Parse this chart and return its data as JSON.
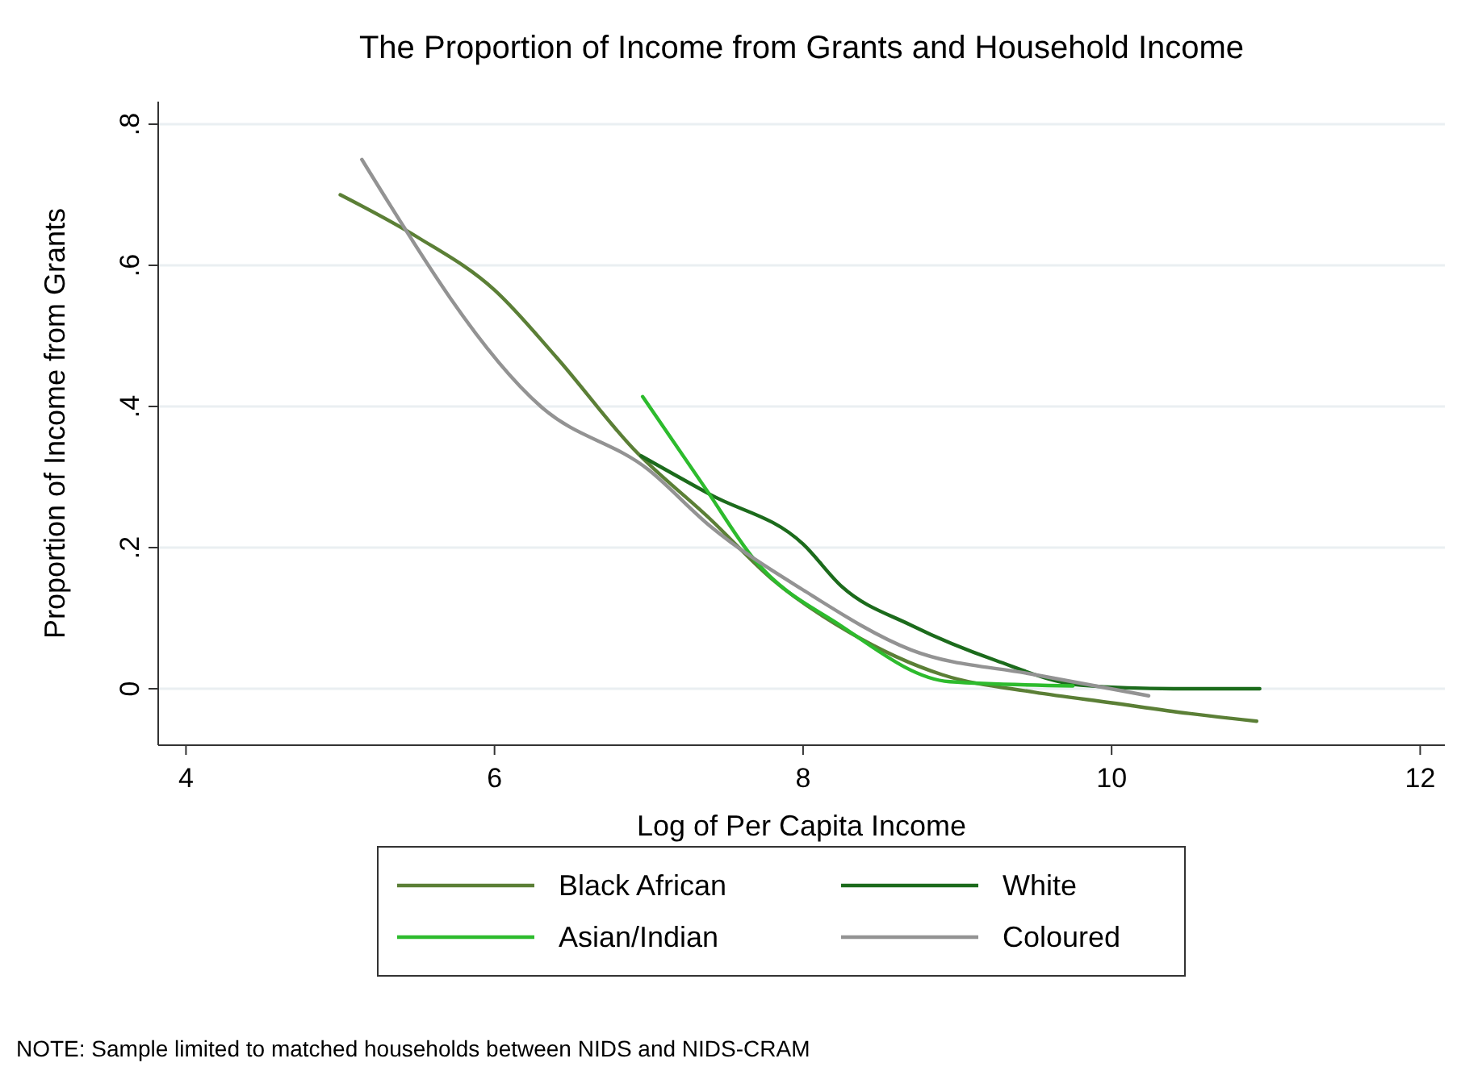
{
  "chart_data": {
    "type": "line",
    "title": "The Proportion of Income from Grants and Household Income",
    "xlabel": "Log of Per Capita Income",
    "ylabel": "Proportion of Income from Grants",
    "xlim": [
      3.82,
      12.16
    ],
    "xticks": [
      4,
      6,
      8,
      10,
      12
    ],
    "ylim": [
      -0.08,
      0.832
    ],
    "yticks": [
      0,
      {
        "value": 0.2,
        "label": ".2"
      },
      {
        "value": 0.4,
        "label": ".4"
      },
      {
        "value": 0.6,
        "label": ".6"
      },
      {
        "value": 0.8,
        "label": ".8"
      }
    ],
    "grid": "y",
    "legend": "bottom",
    "line_style": "solid",
    "marker": "none",
    "series": [
      {
        "name": "Black African",
        "color": "#5b7f36",
        "x": [
          5.0,
          5.5,
          6.0,
          6.4,
          6.9,
          7.4,
          7.8,
          8.3,
          8.9,
          9.5,
          10.0,
          10.5,
          10.94
        ],
        "values": [
          0.7,
          0.64,
          0.565,
          0.47,
          0.34,
          0.24,
          0.155,
          0.08,
          0.02,
          -0.005,
          -0.02,
          -0.035,
          -0.046
        ]
      },
      {
        "name": "White",
        "color": "#1c6b1c",
        "x": [
          6.95,
          7.4,
          8.0,
          8.25,
          8.7,
          9.25,
          9.8,
          10.4,
          10.96
        ],
        "values": [
          0.33,
          0.275,
          0.205,
          0.145,
          0.09,
          0.04,
          0.005,
          0.0,
          0.0
        ]
      },
      {
        "name": "Asian/Indian",
        "color": "#2dbb2d",
        "x": [
          6.96,
          7.37,
          7.68,
          8.24,
          8.95,
          9.75
        ],
        "values": [
          0.414,
          0.283,
          0.184,
          0.09,
          0.01,
          0.004
        ]
      },
      {
        "name": "Coloured",
        "color": "#939393",
        "x": [
          5.14,
          6.3,
          7.0,
          7.4,
          8.0,
          8.7,
          9.5,
          10.24
        ],
        "values": [
          0.75,
          0.4,
          0.31,
          0.23,
          0.14,
          0.055,
          0.02,
          -0.01
        ]
      }
    ],
    "annotations": [
      "NOTE: Sample limited to matched households between NIDS and NIDS-CRAM"
    ]
  }
}
